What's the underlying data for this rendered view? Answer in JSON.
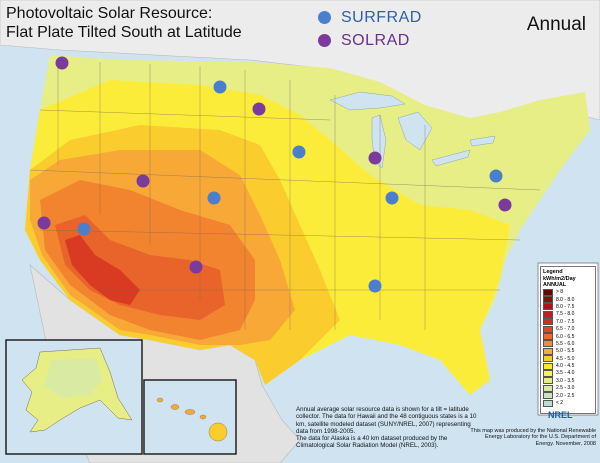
{
  "title": {
    "line1": "Photovoltaic Solar Resource:",
    "line2": "Flat Plate Tilted South at Latitude"
  },
  "period": "Annual",
  "networks": [
    {
      "name": "SURFRAD",
      "color": "#4a7fd0"
    },
    {
      "name": "SOLRAD",
      "color": "#7a3b9c"
    }
  ],
  "legend": {
    "heading1": "Legend",
    "heading2": "kWh/m2/Day",
    "heading3": "ANNUAL",
    "classes": [
      {
        "label": "> 8",
        "color": "#6b0000"
      },
      {
        "label": "8.0 - 8.0",
        "color": "#8b0c0c"
      },
      {
        "label": "8.0 - 7.5",
        "color": "#a81414"
      },
      {
        "label": "7.5 - 8.0",
        "color": "#c01e1e"
      },
      {
        "label": "7.0 - 7.5",
        "color": "#d62a22"
      },
      {
        "label": "6.5 - 7.0",
        "color": "#e2452a"
      },
      {
        "label": "6.0 - 6.5",
        "color": "#ec6a2e"
      },
      {
        "label": "5.5 - 6.0",
        "color": "#f58c32"
      },
      {
        "label": "5.0 - 5.5",
        "color": "#f9ad37"
      },
      {
        "label": "4.5 - 5.0",
        "color": "#fccc2e"
      },
      {
        "label": "4.0 - 4.5",
        "color": "#fde82a"
      },
      {
        "label": "3.5 - 4.0",
        "color": "#f4f25a"
      },
      {
        "label": "3.0 - 3.5",
        "color": "#e6ef7e"
      },
      {
        "label": "2.5 - 3.0",
        "color": "#d9eba2"
      },
      {
        "label": "2.0 - 2.5",
        "color": "#c9e4c0"
      },
      {
        "label": "< 2",
        "color": "#b8dcd8"
      }
    ]
  },
  "note": {
    "p1": "Annual average solar resource data is shown for a tilt = latitude collector. The data for Hawaii and the 48 contiguous states is a 10 km, satellite modeled dataset (SUNY/NREL, 2007) representing data from 1998-2005.",
    "p2": "The data for Alaska is a 40 km dataset produced by the Climatological Solar Radiation Model (NREL, 2003)."
  },
  "credit": "This map was produced by the National Renewable Energy Laboratory for the U.S. Department of Energy. November, 2008",
  "nrel_logo_text": "NREL",
  "zone_colors": {
    "ocean": "#cfe3f0",
    "canada": "#ececec",
    "mexico": "#e2e2e2",
    "z_low": "#e8ee86",
    "z_45": "#fcec3a",
    "z_50": "#fbcc2e",
    "z_55": "#f8a837",
    "z_60": "#f28430",
    "z_65": "#e9642b",
    "z_70": "#d83a22"
  }
}
